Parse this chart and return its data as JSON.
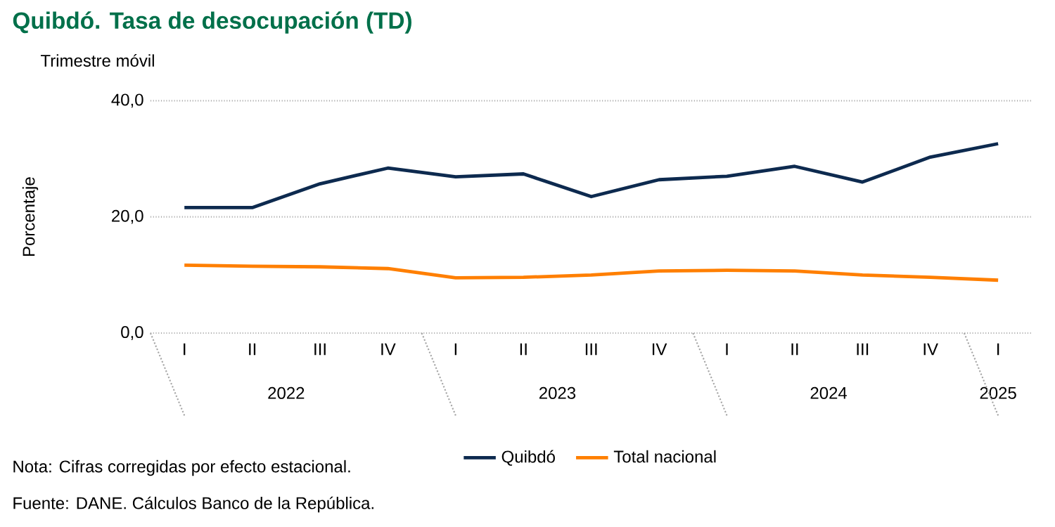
{
  "chart_data": {
    "type": "line",
    "title": "Quibdó. Tasa de desocupación (TD)",
    "subtitle": "Trimestre móvil",
    "ylabel": "Porcentaje",
    "categories": [
      "I",
      "II",
      "III",
      "IV",
      "I",
      "II",
      "III",
      "IV",
      "I",
      "II",
      "III",
      "IV",
      "I"
    ],
    "series": [
      {
        "name": "Quibdó",
        "color": "#0d2a4f",
        "values": [
          21.6,
          21.6,
          25.7,
          28.4,
          26.9,
          27.4,
          23.5,
          26.4,
          27.0,
          28.7,
          26.0,
          30.3,
          32.6
        ]
      },
      {
        "name": "Total nacional",
        "color": "#ff7f00",
        "values": [
          11.7,
          11.5,
          11.4,
          11.1,
          9.5,
          9.6,
          10.0,
          10.7,
          10.8,
          10.7,
          10.0,
          9.6,
          9.1
        ]
      }
    ],
    "ylim": [
      0,
      40
    ],
    "yticks": [
      {
        "value": 0,
        "label": "0,0"
      },
      {
        "value": 20,
        "label": "20,0"
      },
      {
        "value": 40,
        "label": "40,0"
      }
    ],
    "grid": "y",
    "legend": "bottom",
    "annotations": [
      "2022",
      "2023",
      "2024",
      "2025",
      "Nota: Cifras corregidas por efecto estacional.",
      "Fuente: DANE. Cálculos Banco de la República."
    ]
  }
}
